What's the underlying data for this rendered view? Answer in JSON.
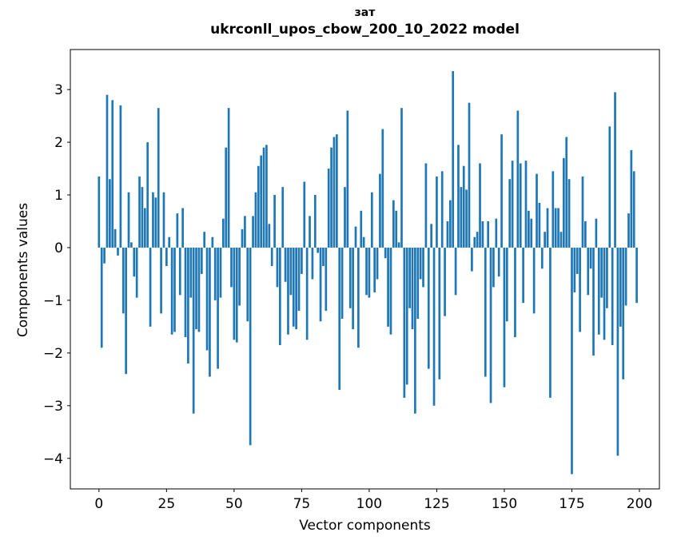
{
  "figure": {
    "title_line1": "зат",
    "title_line2": "ukrconll_upos_cbow_200_10_2022 model",
    "xlabel": "Vector components",
    "ylabel": "Components values",
    "bar_color": "#1f77b4",
    "axis_color": "#000000",
    "background": "#ffffff"
  },
  "chart_data": {
    "type": "bar",
    "title": "зат — ukrconll_upos_cbow_200_10_2022 model",
    "xlabel": "Vector components",
    "ylabel": "Components values",
    "grid": false,
    "legend": null,
    "n_components": 200,
    "x_ticks": [
      0,
      25,
      50,
      75,
      100,
      125,
      150,
      175,
      200
    ],
    "y_ticks": [
      3,
      2,
      1,
      0,
      -1,
      -2,
      -3,
      -4
    ],
    "xlim": [
      -10.6,
      207.4
    ],
    "ylim": [
      -4.58,
      3.76
    ],
    "bar_rel_width": 0.8,
    "values": [
      1.35,
      -1.9,
      -0.3,
      2.9,
      1.3,
      2.8,
      0.35,
      -0.15,
      2.7,
      -1.25,
      -2.4,
      1.05,
      0.1,
      -0.55,
      -0.95,
      1.35,
      1.15,
      0.75,
      2.0,
      -1.5,
      1.05,
      0.95,
      2.65,
      -1.25,
      1.05,
      -0.35,
      0.2,
      -1.65,
      -1.6,
      0.65,
      -0.9,
      0.75,
      -1.7,
      -2.2,
      -0.95,
      -3.15,
      -1.55,
      -1.6,
      -0.5,
      0.3,
      -1.95,
      -2.45,
      0.2,
      -1.0,
      -2.3,
      -0.95,
      0.55,
      1.9,
      2.65,
      -0.75,
      -1.75,
      -1.8,
      -1.1,
      0.35,
      0.6,
      -1.4,
      -3.75,
      0.6,
      1.05,
      1.55,
      1.75,
      1.9,
      1.95,
      0.45,
      -0.35,
      1.0,
      -0.75,
      -1.85,
      1.15,
      -0.65,
      -1.65,
      -0.9,
      -1.5,
      -1.55,
      -1.2,
      -0.5,
      1.25,
      -1.75,
      0.6,
      -0.6,
      1.0,
      -0.1,
      -1.4,
      -0.35,
      -1.2,
      1.5,
      1.9,
      2.1,
      2.15,
      -2.7,
      -1.35,
      1.15,
      2.6,
      -1.15,
      -1.55,
      0.4,
      -1.9,
      0.7,
      0.2,
      -0.9,
      -0.95,
      1.05,
      -0.85,
      -0.6,
      1.4,
      2.25,
      -0.2,
      -1.5,
      -1.65,
      0.9,
      0.7,
      0.1,
      2.65,
      -2.85,
      -2.6,
      -1.15,
      -1.55,
      -3.15,
      -1.35,
      -0.6,
      -0.75,
      1.6,
      -2.3,
      0.45,
      -3.0,
      1.35,
      -2.5,
      1.45,
      -1.3,
      0.5,
      0.9,
      3.35,
      -0.9,
      1.95,
      1.15,
      1.55,
      1.1,
      2.75,
      -0.45,
      0.2,
      0.3,
      1.6,
      0.5,
      -2.45,
      0.5,
      -2.95,
      -0.75,
      0.55,
      -0.55,
      2.15,
      -2.65,
      -1.4,
      1.3,
      1.65,
      -1.7,
      2.6,
      1.6,
      -1.05,
      1.65,
      0.7,
      0.55,
      -1.25,
      1.4,
      0.85,
      -0.4,
      0.3,
      0.75,
      -2.85,
      1.45,
      0.75,
      0.75,
      0.3,
      1.7,
      2.1,
      1.3,
      -4.3,
      -0.85,
      -0.5,
      -1.6,
      1.35,
      0.5,
      -0.9,
      -0.4,
      -2.05,
      0.55,
      -1.65,
      -0.95,
      -1.75,
      -1.15,
      2.3,
      -1.85,
      2.95,
      -3.95,
      -1.5,
      -2.5,
      -1.1,
      0.65,
      1.85,
      1.45,
      -1.05
    ]
  }
}
